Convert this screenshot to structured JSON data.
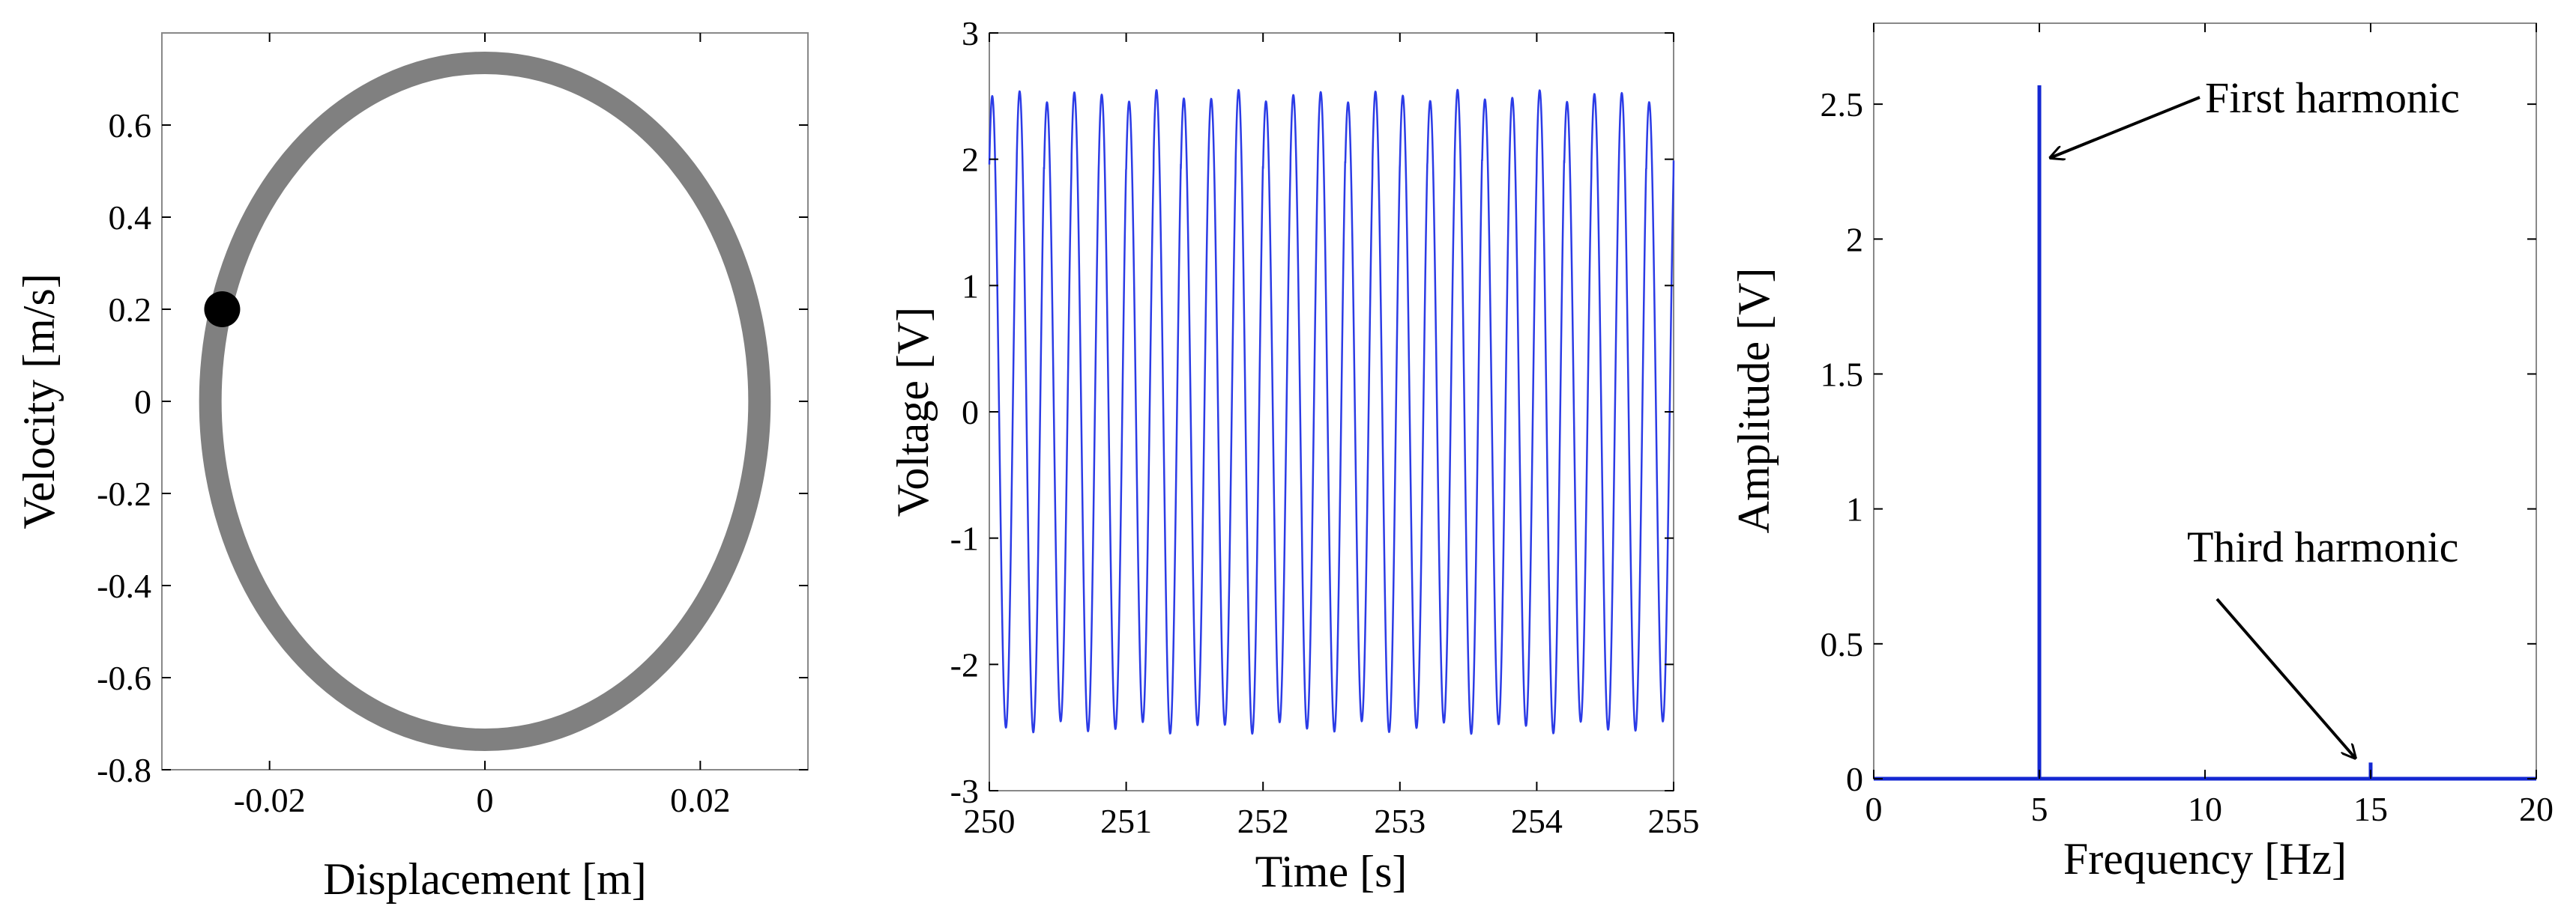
{
  "chart_data": [
    {
      "id": "phase",
      "type": "line",
      "title": "",
      "xlabel": "Displacement [m]",
      "ylabel": "Velocity [m/s]",
      "xlim": [
        -0.03,
        0.03
      ],
      "ylim": [
        -0.8,
        0.8
      ],
      "xticks": [
        -0.02,
        0,
        0.02
      ],
      "xtick_labels": [
        "-0.02",
        "0",
        "0.02"
      ],
      "yticks": [
        -0.8,
        -0.6,
        -0.4,
        -0.2,
        0,
        0.2,
        0.4,
        0.6
      ],
      "ytick_labels": [
        "-0.8",
        "-0.6",
        "-0.4",
        "-0.2",
        "0",
        "0.2",
        "0.4",
        "0.6"
      ],
      "grid": false,
      "series": [
        {
          "kind": "orbit",
          "color": "#808080",
          "x_amplitude": 0.0255,
          "y_amplitude": 0.735,
          "x": [
            0.0,
            0.0128,
            0.0221,
            0.0255,
            0.0221,
            0.0128,
            0.0,
            -0.0128,
            -0.0221,
            -0.0255,
            -0.0221,
            -0.0128,
            0.0
          ],
          "y": [
            0.735,
            0.637,
            0.368,
            0.0,
            -0.368,
            -0.637,
            -0.735,
            -0.637,
            -0.368,
            0.0,
            0.368,
            0.637,
            0.735
          ]
        },
        {
          "kind": "poincare-point",
          "color": "#000000",
          "x": [
            -0.0244
          ],
          "y": [
            0.2
          ]
        }
      ]
    },
    {
      "id": "voltage",
      "type": "line",
      "title": "",
      "xlabel": "Time [s]",
      "ylabel": "Voltage [V]",
      "xlim": [
        250,
        255
      ],
      "ylim": [
        -3,
        3
      ],
      "xticks": [
        250,
        251,
        252,
        253,
        254,
        255
      ],
      "xtick_labels": [
        "250",
        "251",
        "252",
        "253",
        "254",
        "255"
      ],
      "yticks": [
        -3,
        -2,
        -1,
        0,
        1,
        2,
        3
      ],
      "ytick_labels": [
        "-3",
        "-2",
        "-1",
        "0",
        "1",
        "2",
        "3"
      ],
      "grid": false,
      "series": [
        {
          "color": "#2b3be6",
          "frequency_hz": 5,
          "amplitude_v": 2.5,
          "start_time_s": 250,
          "end_time_s": 255
        }
      ]
    },
    {
      "id": "spectrum",
      "type": "bar",
      "title": "",
      "xlabel": "Frequency [Hz]",
      "ylabel": "Amplitude [V]",
      "xlim": [
        0,
        20
      ],
      "ylim": [
        0,
        2.8
      ],
      "xticks": [
        0,
        5,
        10,
        15,
        20
      ],
      "xtick_labels": [
        "0",
        "5",
        "10",
        "15",
        "20"
      ],
      "yticks": [
        0,
        0.5,
        1,
        1.5,
        2,
        2.5
      ],
      "ytick_labels": [
        "0",
        "0.5",
        "1",
        "1.5",
        "2",
        "2.5"
      ],
      "grid": false,
      "series": [
        {
          "color": "#1428d2",
          "x": [
            5,
            15
          ],
          "values": [
            2.57,
            0.06
          ]
        }
      ],
      "annotations": [
        {
          "text": "First harmonic",
          "target_x": 5,
          "target_y": 2.31
        },
        {
          "text": "Third harmonic",
          "target_x": 15,
          "target_y": 0.07
        }
      ]
    }
  ]
}
